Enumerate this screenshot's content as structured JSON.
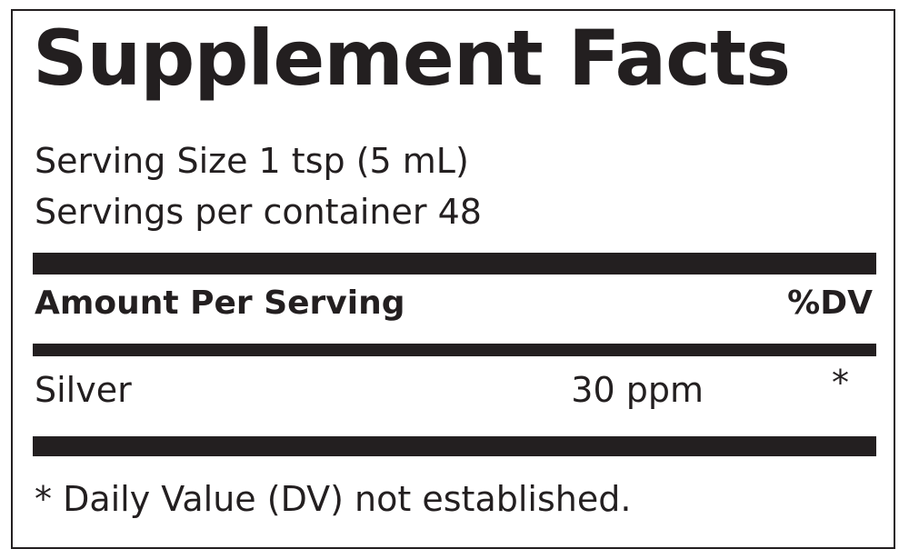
{
  "title": "Supplement Facts",
  "serving_size": "Serving Size 1 tsp (5 mL)",
  "servings_per_container": "Servings per container 48",
  "header": {
    "amount": "Amount Per Serving",
    "dv": "%DV"
  },
  "rows": [
    {
      "name": "Silver",
      "amount": "30 ppm",
      "dv": "*"
    }
  ],
  "footnote": "* Daily Value (DV) not established."
}
